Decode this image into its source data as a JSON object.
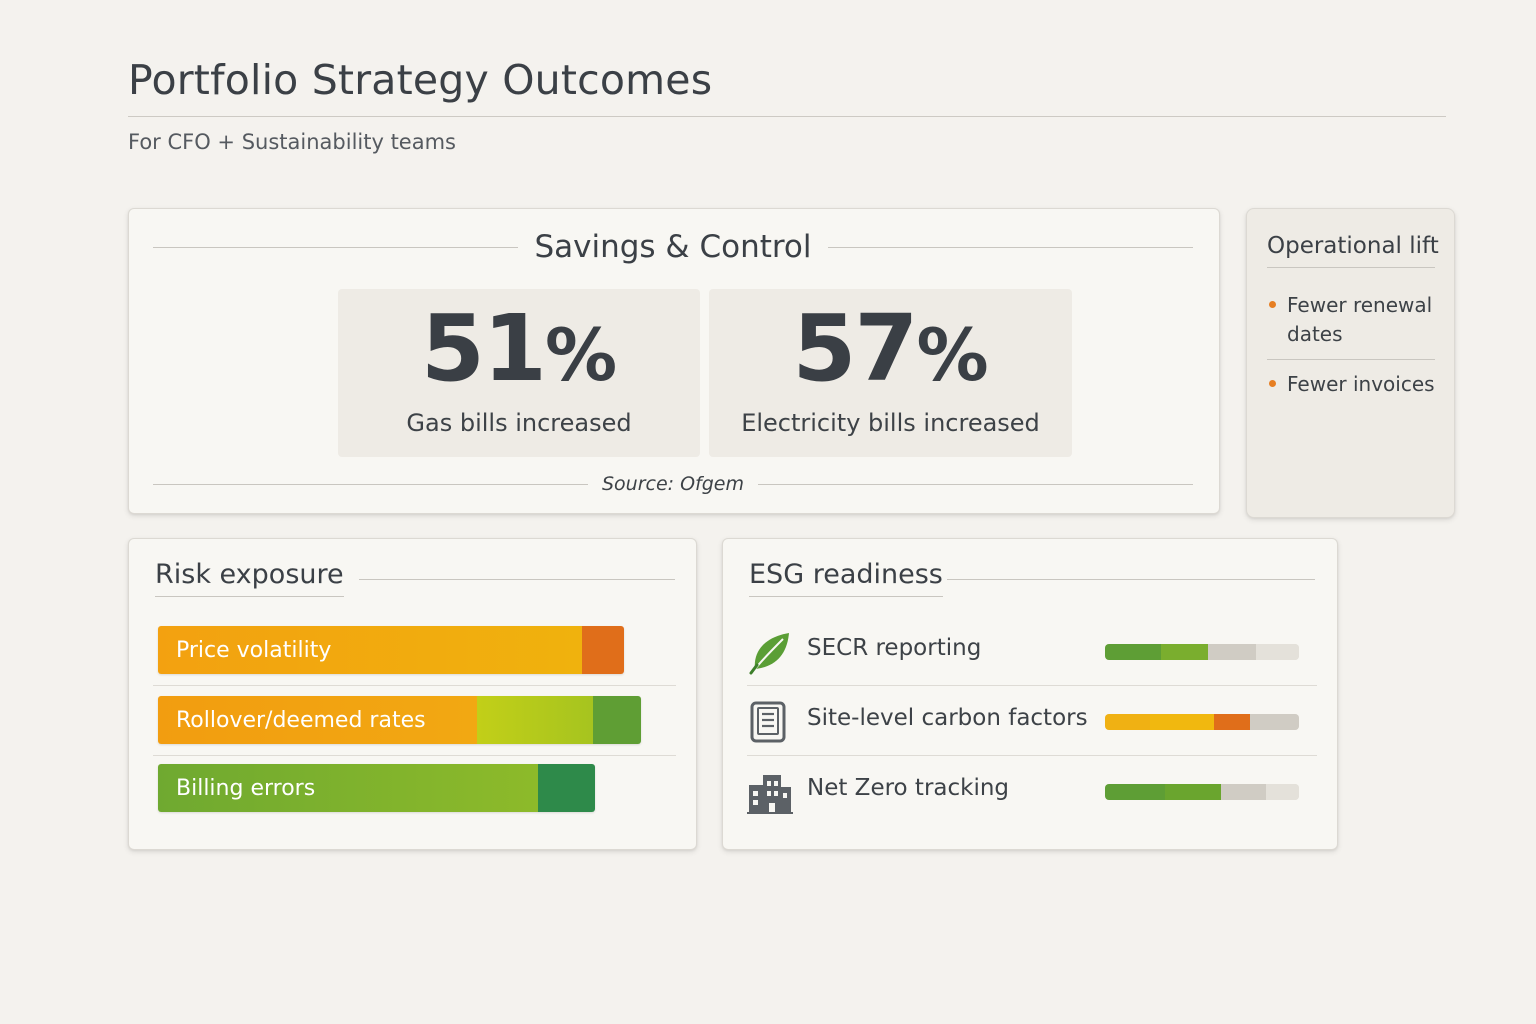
{
  "header": {
    "title": "Portfolio Strategy Outcomes",
    "subtitle": "For CFO + Sustainability teams"
  },
  "savings": {
    "title": "Savings & Control",
    "stats": [
      {
        "value": "51",
        "unit": "%",
        "label": "Gas bills increased"
      },
      {
        "value": "57",
        "unit": "%",
        "label": "Electricity bills increased"
      }
    ],
    "source": "Source: Ofgem"
  },
  "operational": {
    "title": "Operational lift",
    "items": [
      "Fewer renewal dates",
      "Fewer invoices"
    ]
  },
  "risk": {
    "title": "Risk exposure",
    "bars": [
      {
        "label": "Price volatility",
        "level": 0.82
      },
      {
        "label": "Rollover/deemed rates",
        "level": 0.85
      },
      {
        "label": "Billing errors",
        "level": 0.77
      }
    ]
  },
  "esg": {
    "title": "ESG readiness",
    "items": [
      {
        "label": "SECR reporting",
        "icon": "leaf-icon",
        "progress": 0.53
      },
      {
        "label": "Site-level carbon factors",
        "icon": "document-icon",
        "progress": 0.75
      },
      {
        "label": "Net Zero tracking",
        "icon": "building-icon",
        "progress": 0.6
      }
    ]
  },
  "colors": {
    "orange": "#f2a20f",
    "dark_orange": "#e06e1a",
    "lime": "#b5cc1a",
    "green": "#6aa52e",
    "dark_green": "#2e8a4a",
    "track": "#d6d2cb"
  }
}
